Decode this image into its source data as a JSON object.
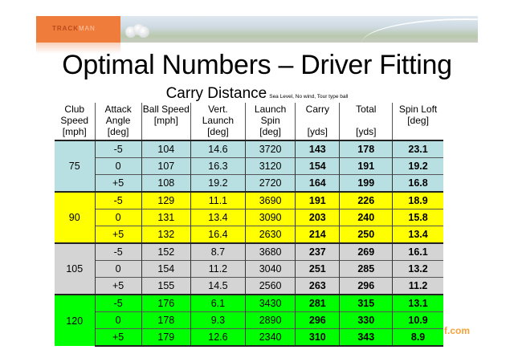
{
  "banner": {
    "logo_track": "TRACK",
    "logo_man": "MAN",
    "colors": {
      "logo_bg": "#f07c3c"
    }
  },
  "title": "Optimal Numbers – Driver Fitting",
  "subtitle": {
    "main": "Carry Distance",
    "note": "Sea Level, No wind, Tour type ball"
  },
  "table": {
    "headers": [
      {
        "label": "Club Speed",
        "unit": "[mph]"
      },
      {
        "label": "Attack Angle",
        "unit": "[deg]"
      },
      {
        "label": "Ball Speed",
        "unit": "[mph]"
      },
      {
        "label": "Vert. Launch",
        "unit": "[deg]"
      },
      {
        "label": "Launch Spin",
        "unit": "[deg]"
      },
      {
        "label": "Carry",
        "unit": "[yds]"
      },
      {
        "label": "Total",
        "unit": "[yds]"
      },
      {
        "label": "Spin Loft",
        "unit": "[deg]"
      }
    ],
    "groups": [
      {
        "club_speed": "75",
        "color": "#b8e0e3",
        "rows": [
          {
            "attack": "-5",
            "ball_speed": "104",
            "vert_launch": "14.6",
            "spin": "3720",
            "carry": "143",
            "total": "178",
            "spin_loft": "23.1"
          },
          {
            "attack": "0",
            "ball_speed": "107",
            "vert_launch": "16.3",
            "spin": "3120",
            "carry": "154",
            "total": "191",
            "spin_loft": "19.2"
          },
          {
            "attack": "+5",
            "ball_speed": "108",
            "vert_launch": "19.2",
            "spin": "2720",
            "carry": "164",
            "total": "199",
            "spin_loft": "16.8"
          }
        ]
      },
      {
        "club_speed": "90",
        "color": "#ffff00",
        "rows": [
          {
            "attack": "-5",
            "ball_speed": "129",
            "vert_launch": "11.1",
            "spin": "3690",
            "carry": "191",
            "total": "226",
            "spin_loft": "18.9"
          },
          {
            "attack": "0",
            "ball_speed": "131",
            "vert_launch": "13.4",
            "spin": "3090",
            "carry": "203",
            "total": "240",
            "spin_loft": "15.8"
          },
          {
            "attack": "+5",
            "ball_speed": "132",
            "vert_launch": "16.4",
            "spin": "2630",
            "carry": "214",
            "total": "250",
            "spin_loft": "13.4"
          }
        ]
      },
      {
        "club_speed": "105",
        "color": "#d4d4d4",
        "rows": [
          {
            "attack": "-5",
            "ball_speed": "152",
            "vert_launch": "8.7",
            "spin": "3680",
            "carry": "237",
            "total": "269",
            "spin_loft": "16.1"
          },
          {
            "attack": "0",
            "ball_speed": "154",
            "vert_launch": "11.2",
            "spin": "3040",
            "carry": "251",
            "total": "285",
            "spin_loft": "13.2"
          },
          {
            "attack": "+5",
            "ball_speed": "155",
            "vert_launch": "14.5",
            "spin": "2560",
            "carry": "263",
            "total": "296",
            "spin_loft": "11.2"
          }
        ]
      },
      {
        "club_speed": "120",
        "color": "#00ff00",
        "rows": [
          {
            "attack": "-5",
            "ball_speed": "176",
            "vert_launch": "6.1",
            "spin": "3430",
            "carry": "281",
            "total": "315",
            "spin_loft": "13.1"
          },
          {
            "attack": "0",
            "ball_speed": "178",
            "vert_launch": "9.3",
            "spin": "2890",
            "carry": "296",
            "total": "330",
            "spin_loft": "10.9"
          },
          {
            "attack": "+5",
            "ball_speed": "179",
            "vert_launch": "12.6",
            "spin": "2340",
            "carry": "310",
            "total": "343",
            "spin_loft": "8.9"
          }
        ]
      }
    ]
  },
  "watermark": "f.com"
}
